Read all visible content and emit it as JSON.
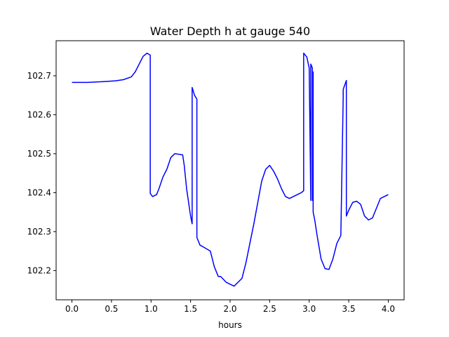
{
  "chart_data": {
    "type": "line",
    "title": "Water Depth h at gauge 540",
    "xlabel": "hours",
    "ylabel": "",
    "xlim": [
      -0.2,
      4.2
    ],
    "ylim": [
      102.125,
      102.79
    ],
    "xticks": [
      0.0,
      0.5,
      1.0,
      1.5,
      2.0,
      2.5,
      3.0,
      3.5,
      4.0
    ],
    "xtick_labels": [
      "0.0",
      "0.5",
      "1.0",
      "1.5",
      "2.0",
      "2.5",
      "3.0",
      "3.5",
      "4.0"
    ],
    "yticks": [
      102.2,
      102.3,
      102.4,
      102.5,
      102.6,
      102.7
    ],
    "ytick_labels": [
      "102.2",
      "102.3",
      "102.4",
      "102.5",
      "102.6",
      "102.7"
    ],
    "grid": false,
    "legend": "none",
    "series": [
      {
        "color": "#0000ff",
        "x": [
          0.0,
          0.2,
          0.4,
          0.55,
          0.65,
          0.75,
          0.8,
          0.85,
          0.9,
          0.95,
          0.99,
          0.99,
          1.02,
          1.07,
          1.1,
          1.15,
          1.2,
          1.25,
          1.3,
          1.4,
          1.42,
          1.45,
          1.5,
          1.52,
          1.52,
          1.55,
          1.58,
          1.58,
          1.62,
          1.65,
          1.75,
          1.8,
          1.85,
          1.88,
          1.95,
          2.05,
          2.15,
          2.2,
          2.3,
          2.4,
          2.45,
          2.5,
          2.55,
          2.6,
          2.65,
          2.7,
          2.75,
          2.8,
          2.85,
          2.9,
          2.93,
          2.93,
          2.97,
          3.0,
          3.02,
          3.02,
          3.04,
          3.04,
          3.05,
          3.05,
          3.07,
          3.1,
          3.15,
          3.2,
          3.25,
          3.3,
          3.35,
          3.4,
          3.43,
          3.43,
          3.47,
          3.47,
          3.5,
          3.55,
          3.6,
          3.65,
          3.7,
          3.75,
          3.8,
          3.85,
          3.9,
          3.95,
          4.0
        ],
        "y": [
          102.683,
          102.683,
          102.685,
          102.687,
          102.69,
          102.697,
          102.71,
          102.73,
          102.75,
          102.758,
          102.753,
          102.398,
          102.39,
          102.395,
          102.41,
          102.44,
          102.46,
          102.49,
          102.5,
          102.497,
          102.47,
          102.41,
          102.34,
          102.32,
          102.67,
          102.65,
          102.64,
          102.285,
          102.265,
          102.262,
          102.25,
          102.21,
          102.185,
          102.185,
          102.17,
          102.16,
          102.18,
          102.22,
          102.32,
          102.43,
          102.46,
          102.47,
          102.455,
          102.435,
          102.41,
          102.39,
          102.385,
          102.39,
          102.395,
          102.4,
          102.405,
          102.758,
          102.748,
          102.72,
          102.38,
          102.73,
          102.72,
          102.38,
          102.71,
          102.35,
          102.33,
          102.29,
          102.23,
          102.205,
          102.203,
          102.23,
          102.27,
          102.29,
          102.645,
          102.665,
          102.688,
          102.34,
          102.355,
          102.375,
          102.378,
          102.37,
          102.34,
          102.33,
          102.335,
          102.36,
          102.385,
          102.39,
          102.395
        ]
      }
    ]
  }
}
